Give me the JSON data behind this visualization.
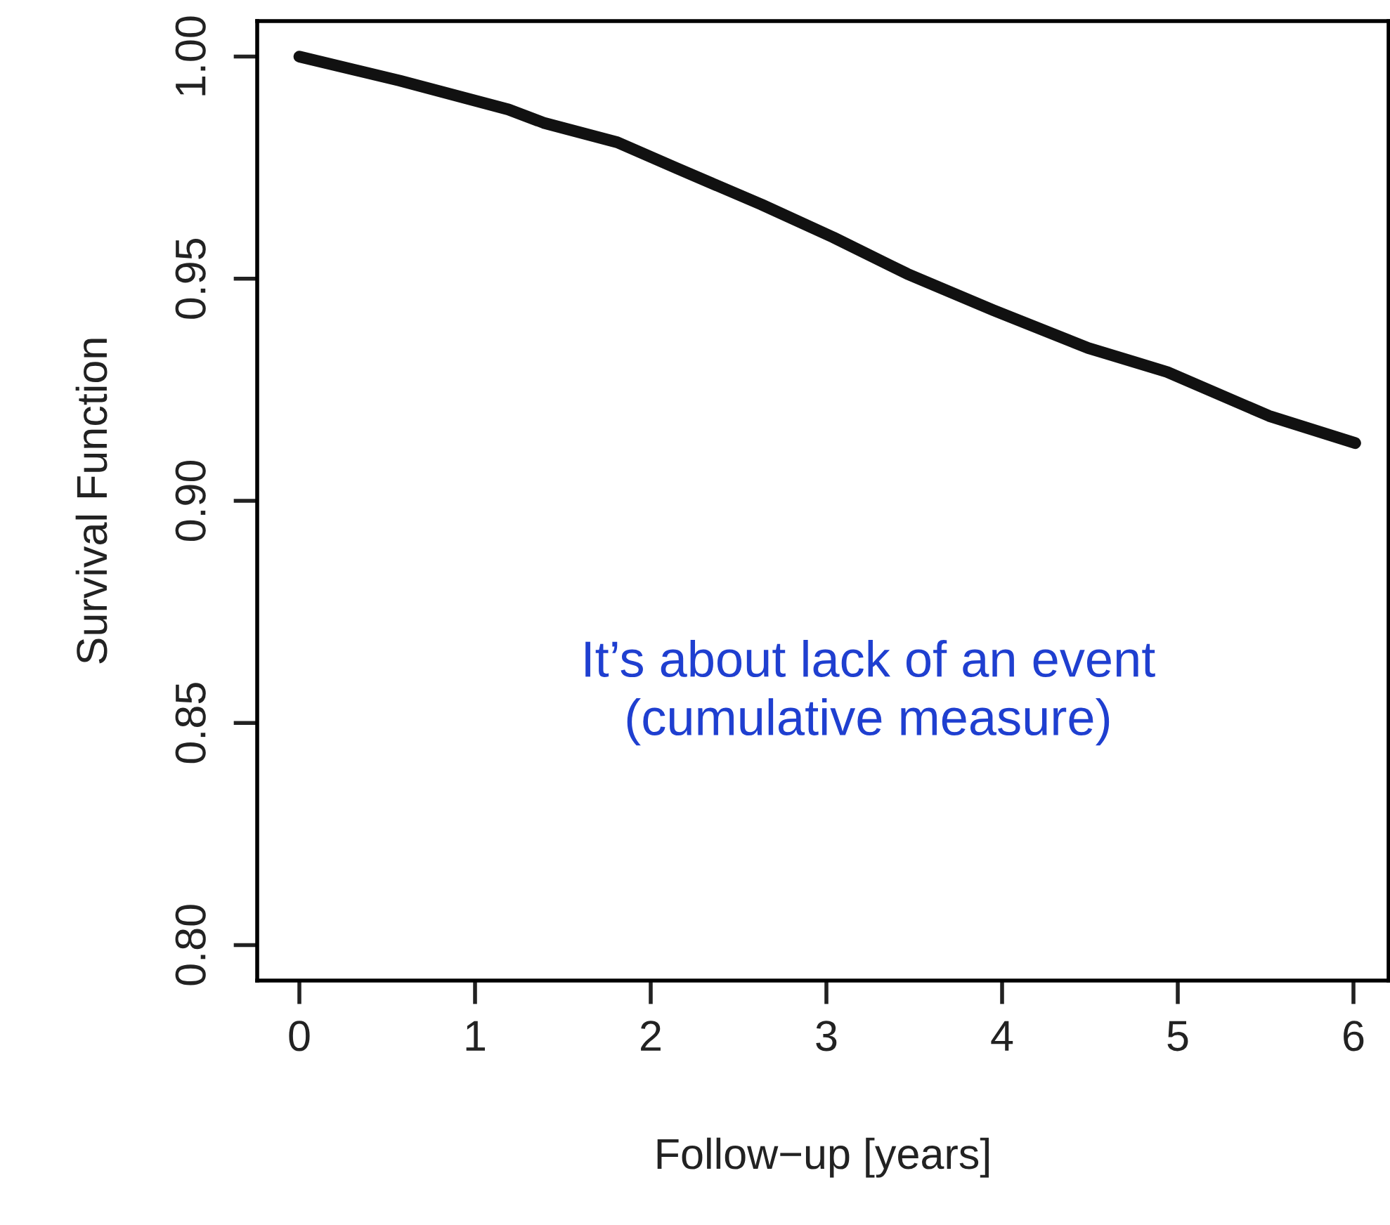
{
  "chart_data": {
    "type": "line",
    "xlabel": "Follow−up [years]",
    "ylabel": "Survival Function",
    "x": [
      0,
      0.57,
      1.19,
      1.39,
      1.81,
      2.14,
      2.63,
      3.04,
      3.46,
      3.95,
      4.49,
      4.94,
      5.52,
      6.01
    ],
    "series": [
      {
        "color": "#111111",
        "values": [
          1.0,
          0.9946,
          0.9881,
          0.9851,
          0.9807,
          0.975,
          0.9667,
          0.9593,
          0.9511,
          0.9429,
          0.9344,
          0.929,
          0.9191,
          0.913
        ]
      }
    ],
    "xlim": [
      -0.24,
      6.2
    ],
    "ylim": [
      0.792,
      1.008
    ],
    "xticks": [
      0,
      1,
      2,
      3,
      4,
      5,
      6
    ],
    "yticks": [
      {
        "value": 0.8,
        "label": "0.80"
      },
      {
        "value": 0.85,
        "label": "0.85"
      },
      {
        "value": 0.9,
        "label": "0.90"
      },
      {
        "value": 0.95,
        "label": "0.95"
      },
      {
        "value": 1.0,
        "label": "1.00"
      }
    ],
    "annotations": [
      "It’s about lack of an event\n(cumulative measure)"
    ],
    "grid": false,
    "legend": false,
    "marker": "none",
    "line_style": "solid"
  }
}
